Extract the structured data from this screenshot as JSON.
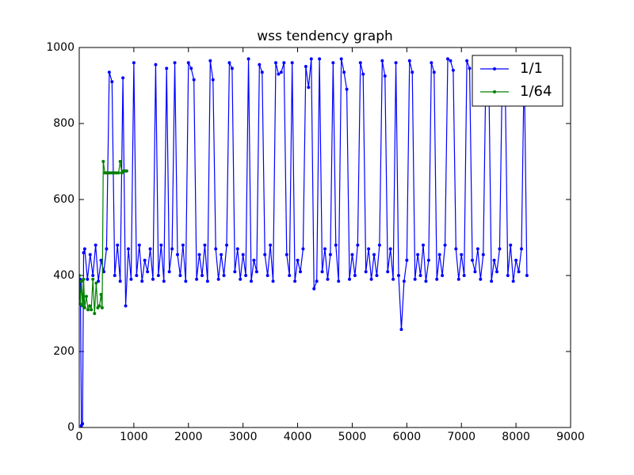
{
  "chart_data": {
    "type": "line",
    "title": "wss tendency graph",
    "xlim": [
      0,
      9000
    ],
    "xticks": [
      0,
      1000,
      2000,
      3000,
      4000,
      5000,
      6000,
      7000,
      8000,
      9000
    ],
    "ylim": [
      0,
      1000
    ],
    "yticks": [
      0,
      200,
      400,
      600,
      800,
      1000
    ],
    "legend": "upper right",
    "series": [
      {
        "name": "1/1",
        "color": "#0000ff",
        "x": [
          20,
          40,
          60,
          80,
          100,
          150,
          200,
          250,
          300,
          350,
          400,
          450,
          500,
          550,
          600,
          650,
          700,
          750,
          800,
          850,
          900,
          950,
          1000,
          1050,
          1100,
          1150,
          1200,
          1250,
          1300,
          1350,
          1400,
          1450,
          1500,
          1550,
          1600,
          1650,
          1700,
          1750,
          1800,
          1850,
          1900,
          1950,
          2000,
          2050,
          2100,
          2150,
          2200,
          2250,
          2300,
          2350,
          2400,
          2450,
          2500,
          2550,
          2600,
          2650,
          2700,
          2750,
          2800,
          2850,
          2900,
          2950,
          3000,
          3050,
          3100,
          3150,
          3200,
          3250,
          3300,
          3350,
          3400,
          3450,
          3500,
          3550,
          3600,
          3650,
          3700,
          3750,
          3800,
          3850,
          3900,
          3950,
          4000,
          4050,
          4100,
          4150,
          4200,
          4250,
          4300,
          4350,
          4400,
          4450,
          4500,
          4550,
          4600,
          4650,
          4700,
          4750,
          4800,
          4850,
          4900,
          4950,
          5000,
          5050,
          5100,
          5150,
          5200,
          5250,
          5300,
          5350,
          5400,
          5450,
          5500,
          5550,
          5600,
          5650,
          5700,
          5750,
          5800,
          5850,
          5900,
          5950,
          6000,
          6050,
          6100,
          6150,
          6200,
          6250,
          6300,
          6350,
          6400,
          6450,
          6500,
          6550,
          6600,
          6650,
          6700,
          6750,
          6800,
          6850,
          6900,
          6950,
          7000,
          7050,
          7100,
          7150,
          7200,
          7250,
          7300,
          7350,
          7400,
          7450,
          7500,
          7550,
          7600,
          7650,
          7700,
          7750,
          7800,
          7850,
          7900,
          7950,
          8000,
          8050,
          8100,
          8150,
          8200
        ],
        "values": [
          390,
          5,
          10,
          460,
          470,
          390,
          455,
          400,
          480,
          385,
          440,
          410,
          470,
          935,
          910,
          400,
          480,
          385,
          920,
          320,
          470,
          390,
          960,
          400,
          480,
          385,
          440,
          410,
          470,
          390,
          955,
          400,
          480,
          385,
          945,
          410,
          470,
          960,
          455,
          400,
          480,
          385,
          960,
          945,
          915,
          390,
          455,
          400,
          480,
          385,
          965,
          915,
          470,
          390,
          455,
          400,
          480,
          960,
          945,
          410,
          470,
          390,
          455,
          400,
          970,
          385,
          440,
          410,
          955,
          935,
          455,
          400,
          480,
          385,
          960,
          930,
          935,
          960,
          455,
          400,
          960,
          385,
          440,
          410,
          470,
          950,
          895,
          970,
          365,
          385,
          970,
          410,
          470,
          390,
          455,
          960,
          480,
          385,
          970,
          935,
          890,
          390,
          455,
          400,
          480,
          960,
          930,
          410,
          470,
          390,
          455,
          400,
          480,
          965,
          925,
          410,
          470,
          390,
          960,
          400,
          258,
          385,
          440,
          965,
          935,
          390,
          455,
          400,
          480,
          385,
          440,
          960,
          935,
          390,
          455,
          400,
          480,
          970,
          965,
          940,
          470,
          390,
          455,
          400,
          965,
          945,
          440,
          410,
          470,
          390,
          455,
          960,
          945,
          385,
          440,
          410,
          470,
          950,
          930,
          400,
          480,
          385,
          440,
          410,
          470,
          955,
          400
        ]
      },
      {
        "name": "1/64",
        "color": "#008000",
        "x": [
          0,
          20,
          40,
          60,
          80,
          100,
          130,
          160,
          190,
          220,
          250,
          280,
          310,
          340,
          370,
          400,
          420,
          440,
          470,
          500,
          530,
          560,
          600,
          640,
          680,
          720,
          750,
          780,
          810,
          840,
          870
        ],
        "values": [
          400,
          325,
          385,
          320,
          390,
          315,
          345,
          310,
          320,
          310,
          390,
          300,
          380,
          315,
          320,
          350,
          315,
          700,
          670,
          670,
          670,
          670,
          670,
          670,
          670,
          670,
          700,
          670,
          675,
          675,
          675
        ]
      }
    ]
  }
}
